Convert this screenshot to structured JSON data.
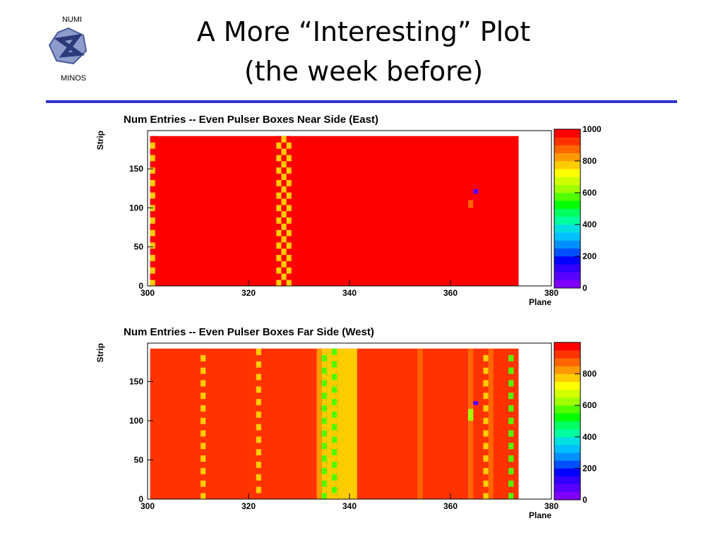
{
  "slide": {
    "title": [
      "A More “Interesting” Plot",
      "(the week before)"
    ],
    "logo": [
      "NUMI",
      "MINOS"
    ]
  },
  "chart_data": [
    {
      "type": "heatmap",
      "title": "Num Entries -- Even Pulser Boxes Near Side (East)",
      "x_label": "Plane",
      "y_label": "Strip",
      "xlim": [
        300,
        380
      ],
      "xticks": [
        300,
        320,
        340,
        360,
        380
      ],
      "ylim": [
        0,
        199
      ],
      "yticks": [
        0,
        50,
        100,
        150
      ],
      "zlim": [
        0,
        1000
      ],
      "zticks": [
        0,
        200,
        400,
        600,
        800,
        1000
      ],
      "palette": [
        "#7f00ff",
        "#5a00ff",
        "#3300ff",
        "#0000ff",
        "#0050ff",
        "#0090ff",
        "#00c0ff",
        "#00e0e0",
        "#00ffa0",
        "#00ff60",
        "#00ff00",
        "#50ff00",
        "#a0ff00",
        "#d0ff00",
        "#ffff00",
        "#ffcc00",
        "#ff9900",
        "#ff6600",
        "#ff3300",
        "#ff0000"
      ],
      "cells": [
        {
          "x": [
            301,
            373
          ],
          "y": [
            0,
            192
          ],
          "value": 990
        },
        {
          "x": [
            364,
            364
          ],
          "y": [
            100,
            110
          ],
          "value": 880
        },
        {
          "x": [
            365,
            365
          ],
          "y": [
            118,
            124
          ],
          "value": 60
        }
      ],
      "columns": [
        {
          "x": 301,
          "values": [
            780,
            990,
            780,
            990,
            780,
            990,
            780,
            990,
            780,
            990,
            780,
            990,
            780,
            990,
            780,
            990,
            780,
            990,
            780,
            990,
            780,
            990,
            780,
            990
          ]
        },
        {
          "x": 326,
          "values": [
            780,
            990,
            780,
            990,
            780,
            990,
            780,
            990,
            780,
            990,
            780,
            990,
            780,
            990,
            780,
            990,
            780,
            990,
            780,
            990,
            780,
            990,
            780,
            990
          ]
        },
        {
          "x": 327,
          "values": [
            990,
            780,
            990,
            780,
            990,
            780,
            990,
            780,
            990,
            780,
            990,
            780,
            990,
            780,
            990,
            780,
            990,
            780,
            990,
            780,
            990,
            780,
            990,
            780
          ]
        },
        {
          "x": 328,
          "values": [
            780,
            990,
            780,
            990,
            780,
            990,
            780,
            990,
            780,
            990,
            780,
            990,
            780,
            990,
            780,
            990,
            780,
            990,
            780,
            990,
            780,
            990,
            780,
            990
          ]
        }
      ]
    },
    {
      "type": "heatmap",
      "title": "Num Entries -- Even Pulser Boxes Far Side (West)",
      "x_label": "Plane",
      "y_label": "Strip",
      "xlim": [
        300,
        380
      ],
      "xticks": [
        300,
        320,
        340,
        360,
        380
      ],
      "ylim": [
        0,
        199
      ],
      "yticks": [
        0,
        50,
        100,
        150
      ],
      "zlim": [
        0,
        1000
      ],
      "zticks": [
        0,
        200,
        400,
        600,
        800
      ],
      "palette": [
        "#7f00ff",
        "#5a00ff",
        "#3300ff",
        "#0000ff",
        "#0050ff",
        "#0090ff",
        "#00c0ff",
        "#00e0e0",
        "#00ffa0",
        "#00ff60",
        "#00ff00",
        "#50ff00",
        "#a0ff00",
        "#d0ff00",
        "#ffff00",
        "#ffcc00",
        "#ff9900",
        "#ff6600",
        "#ff3300",
        "#ff0000"
      ],
      "cells": [
        {
          "x": [
            301,
            373
          ],
          "y": [
            0,
            192
          ],
          "value": 930
        },
        {
          "x": [
            334,
            334
          ],
          "y": [
            0,
            192
          ],
          "value": 840
        },
        {
          "x": [
            336,
            336
          ],
          "y": [
            0,
            192
          ],
          "value": 760
        },
        {
          "x": [
            338,
            341
          ],
          "y": [
            0,
            192
          ],
          "value": 760
        },
        {
          "x": [
            354,
            354
          ],
          "y": [
            0,
            192
          ],
          "value": 870
        },
        {
          "x": [
            364,
            364
          ],
          "y": [
            0,
            192
          ],
          "value": 880
        },
        {
          "x": [
            368,
            368
          ],
          "y": [
            0,
            192
          ],
          "value": 870
        },
        {
          "x": [
            364,
            364
          ],
          "y": [
            100,
            115
          ],
          "value": 600
        },
        {
          "x": [
            365,
            365
          ],
          "y": [
            120,
            125
          ],
          "value": 60
        }
      ],
      "columns": [
        {
          "x": 311,
          "values": [
            760,
            930,
            760,
            930,
            760,
            930,
            760,
            930,
            760,
            930,
            760,
            930,
            760,
            930,
            760,
            930,
            760,
            930,
            760,
            930,
            760,
            930,
            760,
            930
          ]
        },
        {
          "x": 322,
          "values": [
            930,
            760,
            930,
            760,
            930,
            760,
            930,
            760,
            930,
            760,
            930,
            760,
            930,
            760,
            930,
            760,
            930,
            760,
            930,
            760,
            930,
            760,
            930,
            760
          ]
        },
        {
          "x": 335,
          "values": [
            560,
            760,
            560,
            760,
            560,
            760,
            560,
            760,
            560,
            760,
            560,
            760,
            560,
            760,
            560,
            760,
            560,
            760,
            560,
            760,
            560,
            760,
            560,
            760
          ]
        },
        {
          "x": 337,
          "values": [
            760,
            560,
            760,
            560,
            760,
            560,
            760,
            560,
            760,
            560,
            760,
            560,
            760,
            560,
            760,
            560,
            760,
            560,
            760,
            560,
            760,
            560,
            760,
            560
          ]
        },
        {
          "x": 367,
          "values": [
            760,
            930,
            760,
            930,
            760,
            930,
            760,
            930,
            760,
            930,
            760,
            930,
            760,
            930,
            760,
            930,
            760,
            930,
            760,
            930,
            760,
            930,
            760,
            930
          ]
        },
        {
          "x": 372,
          "values": [
            560,
            930,
            560,
            930,
            560,
            930,
            560,
            930,
            560,
            930,
            560,
            930,
            560,
            930,
            560,
            930,
            560,
            930,
            560,
            930,
            560,
            930,
            560,
            930
          ]
        }
      ]
    }
  ]
}
